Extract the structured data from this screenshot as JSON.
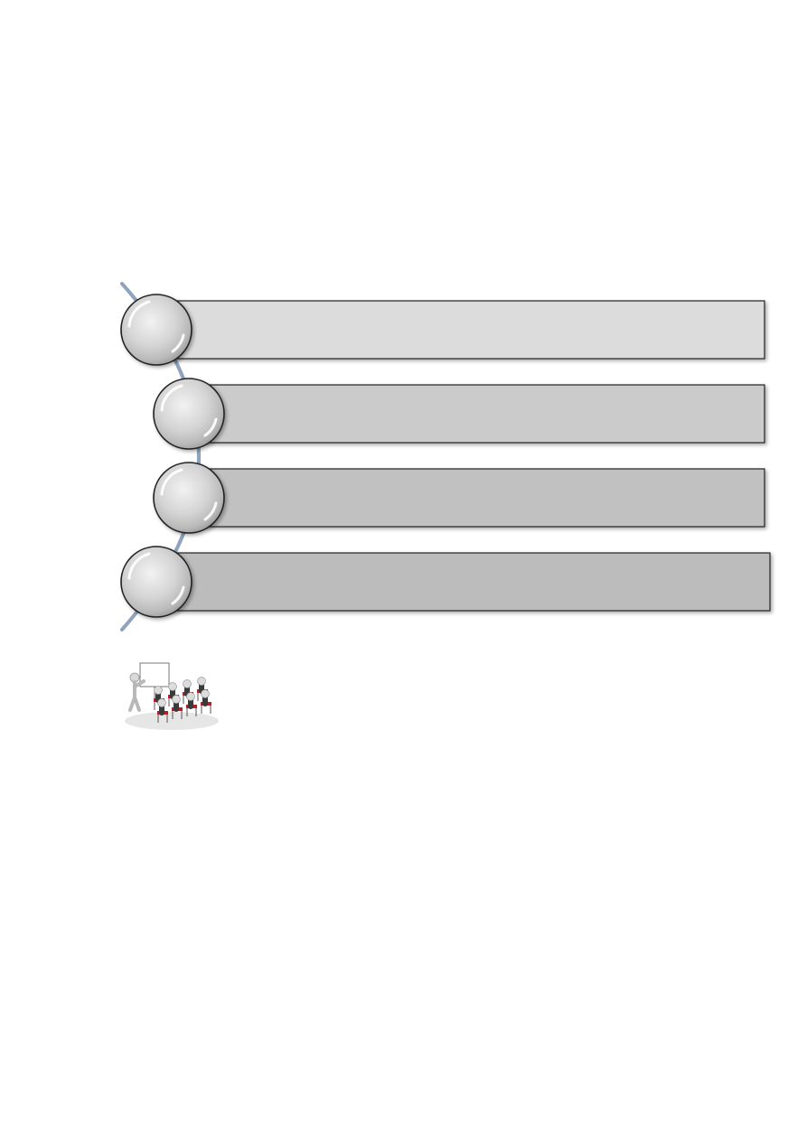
{
  "diagram": {
    "type": "vertical-circle-list",
    "items": [
      {
        "label": "",
        "fill": "#dcdcdc"
      },
      {
        "label": "",
        "fill": "#cbcbcb"
      },
      {
        "label": "",
        "fill": "#c1c1c1"
      },
      {
        "label": "",
        "fill": "#bcbcbc"
      }
    ],
    "connector_color": "#8fa3bf",
    "circle_color": "#d2d2d2",
    "outline_color": "#222222"
  },
  "illustration": {
    "icon": "presentation-audience-icon",
    "chair_color": "#b51f2a"
  }
}
